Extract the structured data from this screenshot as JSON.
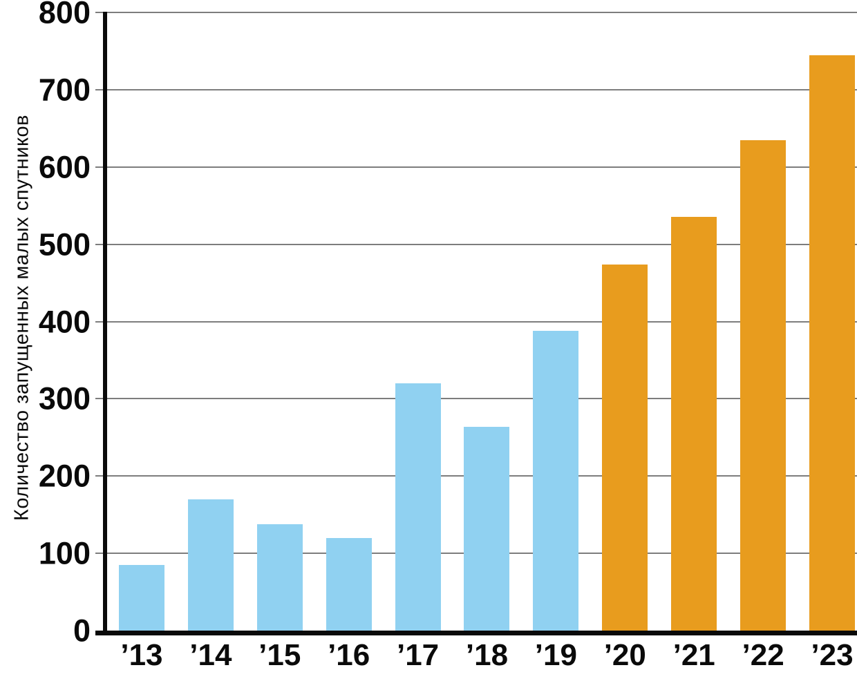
{
  "chart_data": {
    "type": "bar",
    "title": "",
    "xlabel": "",
    "ylabel": "Количество запущенных малых спутников",
    "categories": [
      "’13",
      "’14",
      "’15",
      "’16",
      "’17",
      "’18",
      "’19",
      "’20",
      "’21",
      "’22",
      "’23"
    ],
    "values": [
      85,
      170,
      138,
      120,
      320,
      264,
      388,
      474,
      535,
      635,
      745
    ],
    "bar_colors": [
      "#90D1F1",
      "#90D1F1",
      "#90D1F1",
      "#90D1F1",
      "#90D1F1",
      "#90D1F1",
      "#90D1F1",
      "#E89C1E",
      "#E89C1E",
      "#E89C1E",
      "#E89C1E"
    ],
    "ylim": [
      0,
      800
    ],
    "yticks": [
      0,
      100,
      200,
      300,
      400,
      500,
      600,
      700,
      800
    ],
    "grid": true,
    "legend": "none"
  },
  "colors": {
    "bar_blue": "#90D1F1",
    "bar_orange": "#E89C1E",
    "gridline": "#7d7d7d",
    "axis": "#0a0a0a",
    "text": "#0a0a0a",
    "background": "#ffffff"
  }
}
